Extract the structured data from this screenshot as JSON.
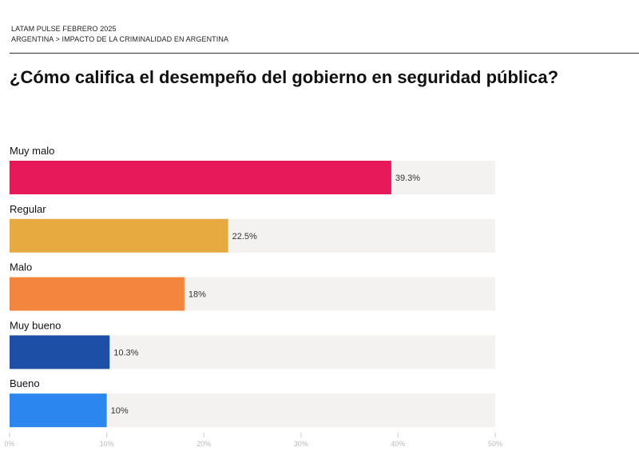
{
  "header": {
    "line1": "LATAM PULSE  FEBRERO 2025",
    "line2": "ARGENTINA > IMPACTO DE LA CRIMINALIDAD EN ARGENTINA"
  },
  "chart_data": {
    "type": "bar",
    "orientation": "horizontal",
    "title": "¿Cómo califica el desempeño del gobierno en seguridad pública?",
    "categories": [
      "Muy malo",
      "Regular",
      "Malo",
      "Muy bueno",
      "Bueno"
    ],
    "values": [
      39.3,
      22.5,
      18,
      10.3,
      10
    ],
    "data_labels": [
      "39.3%",
      "22.5%",
      "18%",
      "10.3%",
      "10%"
    ],
    "colors": [
      "#e8195b",
      "#e6aa40",
      "#f4853f",
      "#1e4fa6",
      "#2b86ef"
    ],
    "track_color": "#f3f2f0",
    "xlim": [
      0,
      50
    ],
    "xticks": [
      0,
      10,
      20,
      30,
      40,
      50
    ],
    "xtick_labels": [
      "0%",
      "10%",
      "20%",
      "30%",
      "40%",
      "50%"
    ],
    "grid": false,
    "legend": "none"
  }
}
